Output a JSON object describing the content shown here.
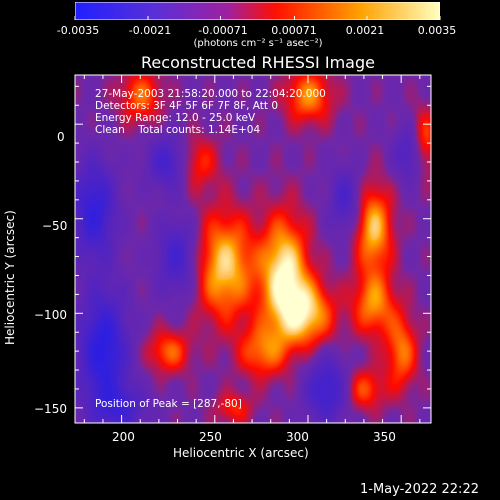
{
  "colorbar": {
    "ticks": [
      "-0.0035",
      "-0.0021",
      "-0.00071",
      "0.00071",
      "0.0021",
      "0.0035"
    ],
    "units_label": "(photons cm⁻² s⁻¹ asec⁻²)",
    "range": [
      -0.0035,
      0.0035
    ],
    "colors": [
      "#2020ff",
      "#6b2fc4",
      "#b0209a",
      "#ff2000",
      "#ffb000",
      "#ffffa0"
    ]
  },
  "title": "Reconstructed RHESSI Image",
  "overlay": {
    "line1": "27-May-2003 21:58:20.000 to 22:04:20.000",
    "line2": "Detectors: 3F 4F 5F 6F 7F 8F, Att 0",
    "line3": "Energy Range: 12.0 - 25.0 keV",
    "line4": "Clean    Total counts: 1.14E+04",
    "peak": "Position of Peak = [287,-80]"
  },
  "footer_timestamp": "1-May-2022 22:22",
  "chart_data": {
    "type": "heatmap",
    "title": "Reconstructed RHESSI Image",
    "xlabel": "Heliocentric X (arcsec)",
    "ylabel": "Heliocentric Y (arcsec)",
    "xlim": [
      175,
      366
    ],
    "ylim": [
      -158,
      26
    ],
    "x_ticks": [
      200,
      250,
      300,
      350
    ],
    "y_ticks": [
      0,
      -50,
      -100,
      -150
    ],
    "colorbar_ticks": [
      -0.0035,
      -0.0021,
      -0.00071,
      0.00071,
      0.0021,
      0.0035
    ],
    "peak_position": [
      287,
      -80
    ],
    "sources": [
      {
        "x": 287,
        "y": -80,
        "sx": 9,
        "sy": 22,
        "a": 1.0
      },
      {
        "x": 255,
        "y": -75,
        "sx": 11,
        "sy": 20,
        "a": 0.85
      },
      {
        "x": 300,
        "y": -100,
        "sx": 10,
        "sy": 12,
        "a": 0.75
      },
      {
        "x": 275,
        "y": -120,
        "sx": 9,
        "sy": 10,
        "a": 0.55
      },
      {
        "x": 335,
        "y": -55,
        "sx": 7,
        "sy": 16,
        "a": 0.8
      },
      {
        "x": 335,
        "y": -95,
        "sx": 8,
        "sy": 12,
        "a": 0.65
      },
      {
        "x": 300,
        "y": 15,
        "sx": 9,
        "sy": 10,
        "a": 0.65
      },
      {
        "x": 210,
        "y": 15,
        "sx": 8,
        "sy": 10,
        "a": 0.55
      },
      {
        "x": 350,
        "y": -120,
        "sx": 6,
        "sy": 14,
        "a": 0.6
      },
      {
        "x": 240,
        "y": -20,
        "sx": 8,
        "sy": 10,
        "a": 0.45
      },
      {
        "x": 362,
        "y": -10,
        "sx": 5,
        "sy": 12,
        "a": 0.6
      },
      {
        "x": 225,
        "y": -120,
        "sx": 8,
        "sy": 8,
        "a": 0.55
      },
      {
        "x": 330,
        "y": -140,
        "sx": 8,
        "sy": 8,
        "a": 0.5
      },
      {
        "x": 260,
        "y": -150,
        "sx": 7,
        "sy": 6,
        "a": 0.4
      },
      {
        "x": 185,
        "y": -45,
        "sx": 8,
        "sy": 18,
        "a": -0.8
      },
      {
        "x": 190,
        "y": -120,
        "sx": 9,
        "sy": 22,
        "a": -0.95
      },
      {
        "x": 230,
        "y": -70,
        "sx": 8,
        "sy": 14,
        "a": -0.6
      },
      {
        "x": 310,
        "y": -140,
        "sx": 8,
        "sy": 12,
        "a": -0.7
      },
      {
        "x": 320,
        "y": -40,
        "sx": 6,
        "sy": 12,
        "a": -0.5
      },
      {
        "x": 225,
        "y": -20,
        "sx": 8,
        "sy": 10,
        "a": -0.6
      },
      {
        "x": 355,
        "y": -15,
        "sx": 6,
        "sy": 10,
        "a": -0.55
      },
      {
        "x": 200,
        "y": -150,
        "sx": 10,
        "sy": 8,
        "a": -0.5
      }
    ]
  }
}
